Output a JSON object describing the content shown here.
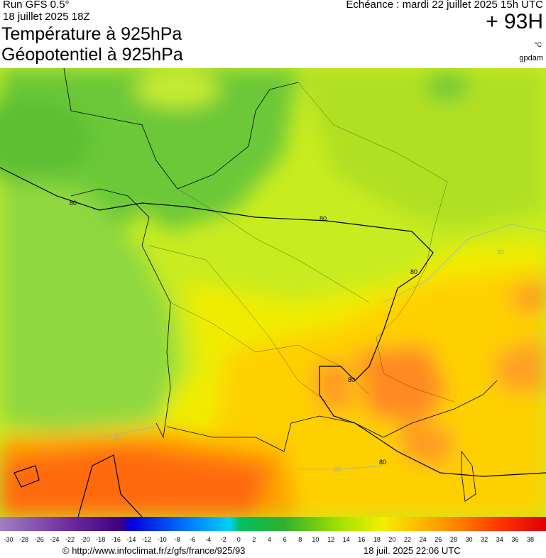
{
  "header": {
    "run": "Run GFS 0.5°",
    "run_date": "18 juillet 2025 18Z",
    "title_1": "Température à 925hPa",
    "title_2": "Géopotentiel à 925hPa",
    "valid": "Echéance : mardi 22 juillet 2025 15h UTC",
    "lead": "+ 93H",
    "unit_1": "°C",
    "unit_2": "gpdam"
  },
  "map": {
    "contour_labels": [
      "80",
      "80",
      "80",
      "80",
      "80",
      "20",
      "20",
      "20"
    ]
  },
  "colorbar": {
    "labels": [
      -30,
      -28,
      -26,
      -24,
      -22,
      -20,
      -18,
      -16,
      -14,
      -12,
      -10,
      -8,
      -6,
      -4,
      -2,
      0,
      2,
      4,
      6,
      8,
      10,
      12,
      14,
      16,
      18,
      20,
      22,
      24,
      26,
      28,
      30,
      32,
      34,
      36,
      38
    ]
  },
  "footer": {
    "source": "© http://www.infoclimat.fr/z/gfs/france/925/93",
    "generated": "18 juil. 2025 22:06 UTC"
  }
}
